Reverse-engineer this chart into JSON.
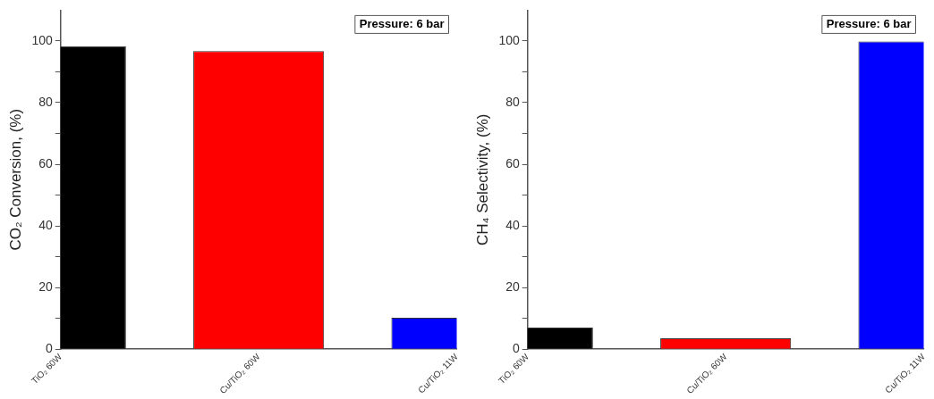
{
  "chart_data": [
    {
      "type": "bar",
      "ylabel": "CO₂ Conversion, (%)",
      "categories": [
        "TiO₂ 60W",
        "Cu/TiO₂ 60W",
        "Cu/TiO₂ 11W"
      ],
      "values": [
        98.3,
        96.7,
        10.2
      ],
      "colors": [
        "#000000",
        "#ff0000",
        "#0000ff"
      ],
      "ylim": [
        0,
        110
      ],
      "yticks": [
        0,
        {
          "value": 10,
          "label": null
        },
        20,
        {
          "value": 30,
          "label": null
        },
        40,
        {
          "value": 50,
          "label": null
        },
        60,
        {
          "value": 70,
          "label": null
        },
        80,
        {
          "value": 90,
          "label": null
        },
        100
      ],
      "annotations": [
        "Pressure: 6 bar"
      ]
    },
    {
      "type": "bar",
      "ylabel": "CH₄ Selectivity, (%)",
      "categories": [
        "TiO₂ 60W",
        "Cu/TiO₂ 60W",
        "Cu/TiO₂ 11W"
      ],
      "values": [
        7.0,
        3.5,
        99.8
      ],
      "colors": [
        "#000000",
        "#ff0000",
        "#0000ff"
      ],
      "ylim": [
        0,
        110
      ],
      "yticks": [
        0,
        {
          "value": 10,
          "label": null
        },
        20,
        {
          "value": 30,
          "label": null
        },
        40,
        {
          "value": 50,
          "label": null
        },
        60,
        {
          "value": 70,
          "label": null
        },
        80,
        {
          "value": 90,
          "label": null
        },
        100
      ],
      "annotations": [
        "Pressure: 6 bar"
      ]
    }
  ]
}
